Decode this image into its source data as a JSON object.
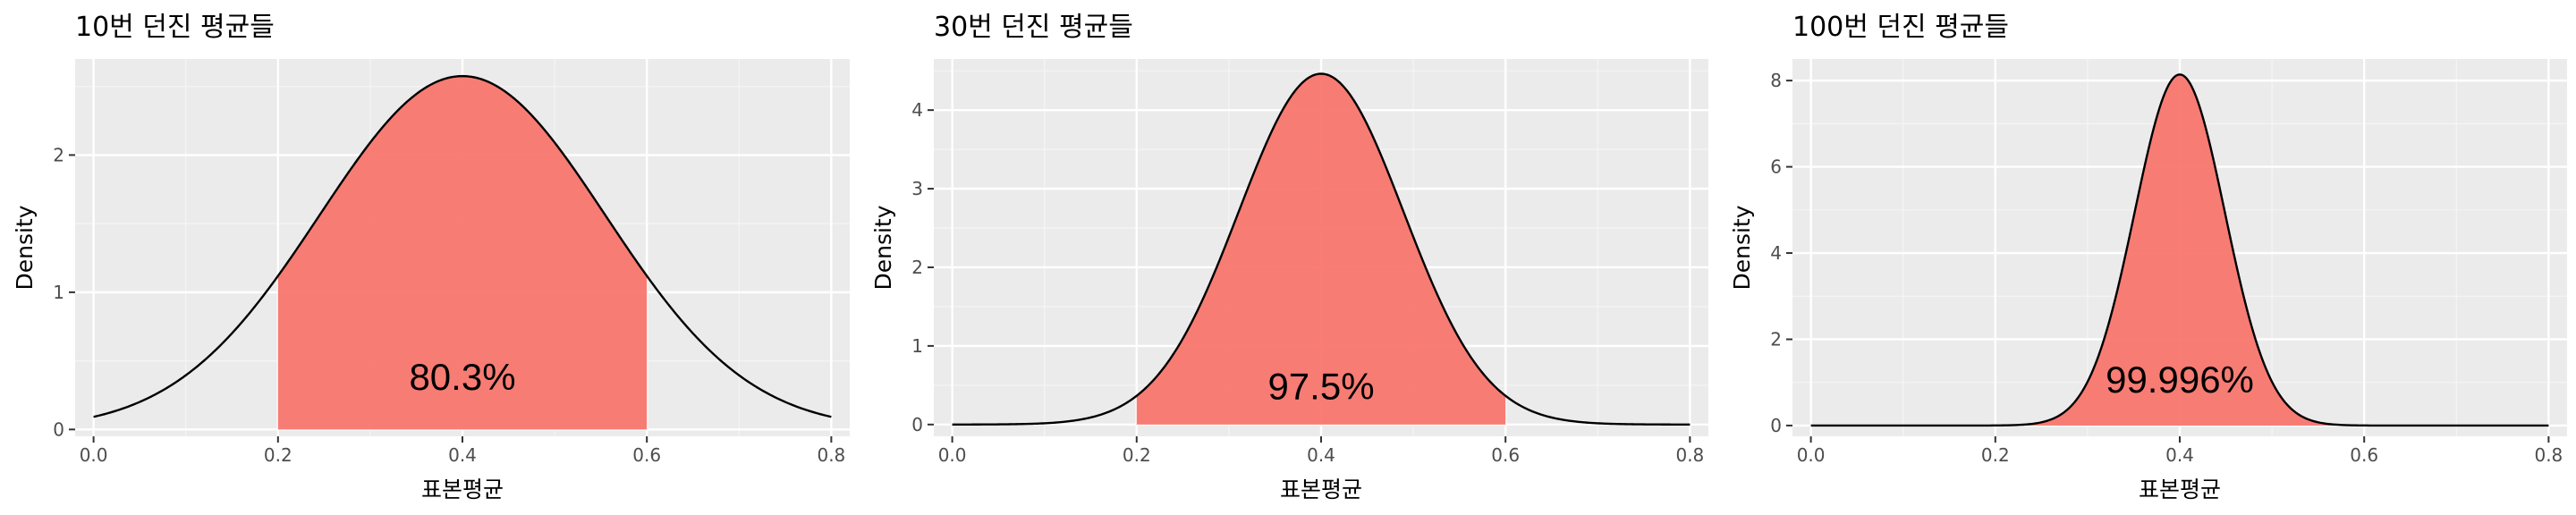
{
  "chart_data": [
    {
      "type": "area",
      "title": "10번 던진 평균들",
      "xlabel": "표본평균",
      "ylabel": "Density",
      "xlim": [
        -0.02,
        0.82
      ],
      "ylim": [
        -0.05,
        2.7
      ],
      "x_ticks": [
        0.0,
        0.2,
        0.4,
        0.6,
        0.8
      ],
      "x_tick_labels": [
        "0.0",
        "0.2",
        "0.4",
        "0.6",
        "0.8"
      ],
      "y_ticks": [
        0,
        1,
        2
      ],
      "y_tick_labels": [
        "0",
        "1",
        "2"
      ],
      "distribution": {
        "mean": 0.4,
        "sd": 0.1549,
        "n": 10
      },
      "x_range": [
        0.0,
        0.8
      ],
      "peak_density": 2.58,
      "shaded_range": [
        0.2,
        0.6
      ],
      "fill_color": "#f8766d",
      "annotation": {
        "text": "80.3%",
        "x": 0.4,
        "y": 0.36
      },
      "grid": true
    },
    {
      "type": "area",
      "title": "30번 던진 평균들",
      "xlabel": "표본평균",
      "ylabel": "Density",
      "xlim": [
        -0.02,
        0.82
      ],
      "ylim": [
        -0.15,
        4.65
      ],
      "x_ticks": [
        0.0,
        0.2,
        0.4,
        0.6,
        0.8
      ],
      "x_tick_labels": [
        "0.0",
        "0.2",
        "0.4",
        "0.6",
        "0.8"
      ],
      "y_ticks": [
        0,
        1,
        2,
        3,
        4
      ],
      "y_tick_labels": [
        "0",
        "1",
        "2",
        "3",
        "4"
      ],
      "distribution": {
        "mean": 0.4,
        "sd": 0.0894,
        "n": 30
      },
      "x_range": [
        0.0,
        0.8
      ],
      "peak_density": 4.46,
      "shaded_range": [
        0.2,
        0.6
      ],
      "fill_color": "#f8766d",
      "annotation": {
        "text": "97.5%",
        "x": 0.4,
        "y": 0.45
      },
      "grid": true
    },
    {
      "type": "area",
      "title": "100번 던진 평균들",
      "xlabel": "표본평균",
      "ylabel": "Density",
      "xlim": [
        -0.02,
        0.82
      ],
      "ylim": [
        -0.25,
        8.5
      ],
      "x_ticks": [
        0.0,
        0.2,
        0.4,
        0.6,
        0.8
      ],
      "x_tick_labels": [
        "0.0",
        "0.2",
        "0.4",
        "0.6",
        "0.8"
      ],
      "y_ticks": [
        0,
        2,
        4,
        6,
        8
      ],
      "y_tick_labels": [
        "0",
        "2",
        "4",
        "6",
        "8"
      ],
      "distribution": {
        "mean": 0.4,
        "sd": 0.049,
        "n": 100
      },
      "x_range": [
        0.0,
        0.8
      ],
      "peak_density": 8.14,
      "shaded_range": [
        0.2,
        0.6
      ],
      "fill_color": "#f8766d",
      "annotation": {
        "text": "99.996%",
        "x": 0.4,
        "y": 1.0
      },
      "grid": true
    }
  ]
}
